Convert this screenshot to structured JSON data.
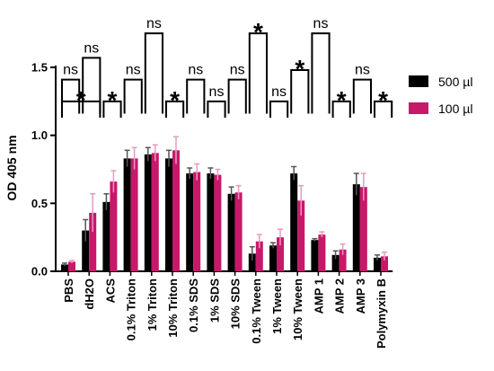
{
  "chart_data": {
    "type": "bar",
    "ylabel": "OD 405 nm",
    "ylim": [
      0,
      1.5
    ],
    "yticks": [
      "0.0",
      "0.5",
      "1.0",
      "1.5"
    ],
    "categories": [
      "PBS",
      "dH2O",
      "ACS",
      "0.1% Triton",
      "1% Triton",
      "10% Triton",
      "0.1% SDS",
      "1% SDS",
      "10% SDS",
      "0.1% Tween",
      "1% Tween",
      "10% Tween",
      "AMP 1",
      "AMP 2",
      "AMP 3",
      "Polymyxin B"
    ],
    "series": [
      {
        "name": "500 µl",
        "color": "#000000",
        "values": [
          0.05,
          0.3,
          0.51,
          0.83,
          0.86,
          0.83,
          0.72,
          0.72,
          0.57,
          0.13,
          0.19,
          0.72,
          0.23,
          0.12,
          0.64,
          0.1
        ],
        "errors": [
          0.01,
          0.08,
          0.06,
          0.06,
          0.05,
          0.06,
          0.04,
          0.04,
          0.05,
          0.05,
          0.02,
          0.05,
          0.01,
          0.03,
          0.08,
          0.02
        ]
      },
      {
        "name": "100 µl",
        "color": "#c8186a",
        "values": [
          0.07,
          0.43,
          0.66,
          0.83,
          0.87,
          0.89,
          0.73,
          0.71,
          0.58,
          0.22,
          0.25,
          0.52,
          0.27,
          0.16,
          0.62,
          0.11
        ],
        "errors": [
          0.01,
          0.14,
          0.08,
          0.08,
          0.06,
          0.1,
          0.06,
          0.04,
          0.05,
          0.05,
          0.06,
          0.11,
          0.02,
          0.04,
          0.1,
          0.03
        ]
      }
    ],
    "significance": [
      {
        "pair": [
          0,
          2
        ],
        "label": "*",
        "level": 1.25
      },
      {
        "pair": [
          0,
          1
        ],
        "label": "ns",
        "level": 1.41
      },
      {
        "pair": [
          1,
          2
        ],
        "label": "ns",
        "level": 1.57
      },
      {
        "pair": [
          2,
          3
        ],
        "label": "*",
        "level": 1.25
      },
      {
        "pair": [
          3,
          4
        ],
        "label": "ns",
        "level": 1.41
      },
      {
        "pair": [
          4,
          5
        ],
        "label": "ns",
        "level": 1.75
      },
      {
        "pair": [
          5,
          6
        ],
        "label": "*",
        "level": 1.25
      },
      {
        "pair": [
          6,
          7
        ],
        "label": "ns",
        "level": 1.41
      },
      {
        "pair": [
          7,
          8
        ],
        "label": "ns",
        "level": 1.25
      },
      {
        "pair": [
          8,
          9
        ],
        "label": "ns",
        "level": 1.41
      },
      {
        "pair": [
          9,
          10
        ],
        "label": "*",
        "level": 1.75
      },
      {
        "pair": [
          10,
          11
        ],
        "label": "ns",
        "level": 1.25
      },
      {
        "pair": [
          11,
          12
        ],
        "label": "*",
        "level": 1.48
      },
      {
        "pair": [
          12,
          13
        ],
        "label": "ns",
        "level": 1.75
      },
      {
        "pair": [
          13,
          14
        ],
        "label": "*",
        "level": 1.25
      },
      {
        "pair": [
          14,
          15
        ],
        "label": "ns",
        "level": 1.41
      },
      {
        "pair": [
          15,
          16
        ],
        "label": "*",
        "level": 1.25
      }
    ],
    "legend_position": "top-right",
    "grid": false
  }
}
